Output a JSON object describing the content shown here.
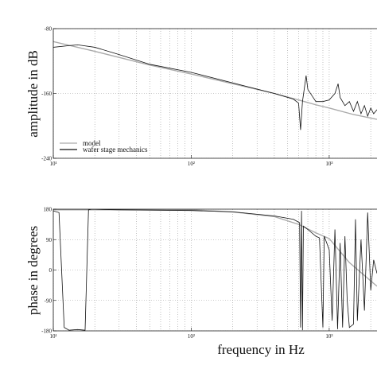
{
  "chart_data": [
    {
      "type": "line",
      "ylabel": "amplitude in dB",
      "log_x": true,
      "grid": true,
      "legend": "lower left",
      "xlim": [
        10,
        2220
      ],
      "xticks": [
        {
          "value": 10,
          "label": "10¹"
        },
        {
          "value": 100,
          "label": "10²"
        },
        {
          "value": 1000,
          "label": "10³"
        }
      ],
      "ylim": [
        -240,
        -80
      ],
      "yticks": [
        -240,
        -160,
        -80
      ],
      "series": [
        {
          "name": "model",
          "color": "#aaaaaa",
          "x": [
            10,
            20,
            50,
            100,
            200,
            400,
            600,
            800,
            1000,
            1500,
            2220
          ],
          "values": [
            -96,
            -108,
            -125,
            -136,
            -148,
            -160,
            -168,
            -174,
            -178,
            -186,
            -192
          ]
        },
        {
          "name": "wafer stage mechanics",
          "color": "#111111",
          "x": [
            10,
            13,
            15,
            20,
            30,
            50,
            100,
            200,
            400,
            550,
            600,
            620,
            640,
            680,
            700,
            800,
            900,
            1000,
            1100,
            1160,
            1200,
            1300,
            1400,
            1500,
            1600,
            1700,
            1800,
            1900,
            2000,
            2100,
            2220
          ],
          "values": [
            -103,
            -101,
            -100,
            -103,
            -112,
            -124,
            -134,
            -147,
            -160,
            -167,
            -172,
            -205,
            -170,
            -138,
            -155,
            -170,
            -170,
            -168,
            -160,
            -148,
            -165,
            -175,
            -170,
            -182,
            -170,
            -185,
            -175,
            -188,
            -178,
            -185,
            -180
          ]
        }
      ]
    },
    {
      "type": "line",
      "ylabel": "phase in degrees",
      "xlabel": "frequency in Hz",
      "log_x": true,
      "grid": true,
      "xlim": [
        10,
        2220
      ],
      "xticks": [
        {
          "value": 10,
          "label": "10¹"
        },
        {
          "value": 100,
          "label": "10²"
        },
        {
          "value": 1000,
          "label": "10³"
        }
      ],
      "ylim": [
        -180,
        180
      ],
      "yticks": [
        -180,
        -90,
        0,
        90,
        180
      ],
      "series": [
        {
          "name": "model",
          "color": "#aaaaaa",
          "x": [
            10,
            100,
            200,
            400,
            600,
            800,
            1000,
            1400,
            2220
          ],
          "values": [
            178,
            178,
            172,
            158,
            135,
            110,
            93,
            22,
            -48
          ]
        },
        {
          "name": "wafer stage mechanics",
          "color": "#111111",
          "x": [
            10,
            11,
            12,
            13,
            15,
            17,
            18,
            19,
            30,
            100,
            200,
            400,
            550,
            610,
            620,
            630,
            640,
            650,
            700,
            800,
            850,
            900,
            920,
            1000,
            1050,
            1100,
            1150,
            1200,
            1250,
            1300,
            1350,
            1400,
            1500,
            1550,
            1600,
            1700,
            1800,
            1900,
            2000,
            2100,
            2220
          ],
          "values": [
            175,
            170,
            -170,
            -178,
            -176,
            -178,
            178,
            180,
            178,
            176,
            172,
            160,
            150,
            140,
            -170,
            175,
            -178,
            130,
            120,
            100,
            95,
            -170,
            100,
            60,
            -150,
            120,
            -175,
            80,
            -170,
            100,
            -90,
            -170,
            -160,
            150,
            -150,
            90,
            -120,
            170,
            -60,
            30,
            -10
          ]
        }
      ]
    }
  ]
}
